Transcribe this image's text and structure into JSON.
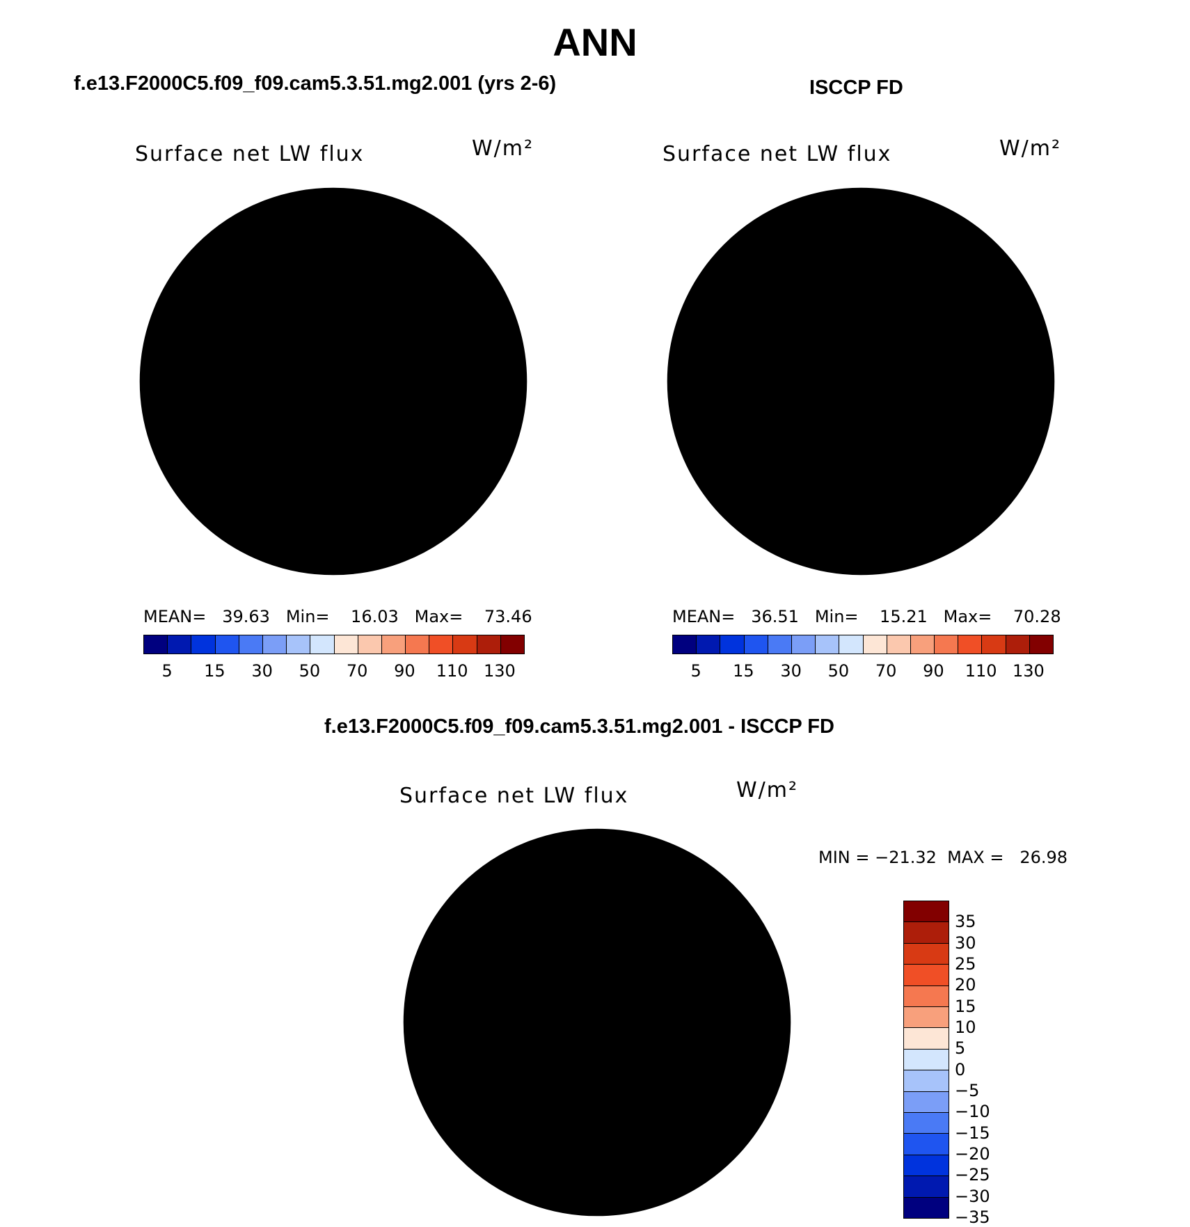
{
  "title": "ANN",
  "panels": [
    {
      "title": "f.e13.F2000C5.f09_f09.cam5.3.51.mg2.001 (yrs 2-6)",
      "variable": "Surface net LW flux",
      "units": "W/m²",
      "stats": "MEAN=   39.63   Min=    16.03   Max=    73.46",
      "mean": 39.63,
      "min": 16.03,
      "max": 73.46
    },
    {
      "title": "ISCCP FD",
      "variable": "Surface net LW flux",
      "units": "W/m²",
      "stats": "MEAN=   36.51   Min=    15.21   Max=    70.28",
      "mean": 36.51,
      "min": 15.21,
      "max": 70.28
    },
    {
      "title": "f.e13.F2000C5.f09_f09.cam5.3.51.mg2.001 - ISCCP FD",
      "variable": "Surface net LW flux",
      "units": "W/m²",
      "stats": "MIN = −21.32  MAX =   26.98",
      "min": -21.32,
      "max": 26.98
    }
  ],
  "colorbar_abs": {
    "colors": [
      "#00007f",
      "#0019b0",
      "#0033dd",
      "#1f55f0",
      "#4a7af5",
      "#7b9ef7",
      "#a7c3fa",
      "#d3e6fd",
      "#fde6d6",
      "#fbc8ae",
      "#f8a07c",
      "#f57850",
      "#f04f26",
      "#d83a14",
      "#ad1e0a",
      "#820000"
    ],
    "labels": [
      "5",
      "15",
      "30",
      "50",
      "70",
      "90",
      "110",
      "130"
    ]
  },
  "colorbar_diff": {
    "colors": [
      "#820000",
      "#ad1e0a",
      "#d83a14",
      "#f04f26",
      "#f57850",
      "#f8a07c",
      "#fde6d6",
      "#d3e6fd",
      "#a7c3fa",
      "#7b9ef7",
      "#4a7af5",
      "#1f55f0",
      "#0033dd",
      "#0019b0",
      "#00007f"
    ],
    "labels": [
      "35",
      "30",
      "25",
      "20",
      "15",
      "10",
      "5",
      "0",
      "−5",
      "−10",
      "−15",
      "−20",
      "−25",
      "−30",
      "−35"
    ]
  }
}
